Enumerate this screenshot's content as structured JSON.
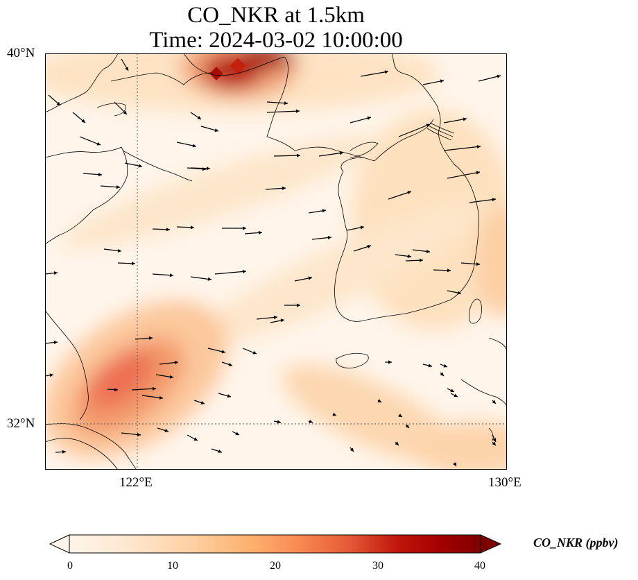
{
  "title": {
    "line1": "CO_NKR at 1.5km",
    "line2": "Time: 2024-03-02 10:00:00"
  },
  "axes": {
    "lat_ticks": [
      "40°N",
      "32°N"
    ],
    "lon_ticks": [
      "122°E",
      "130°E"
    ]
  },
  "map_extent": {
    "lon": [
      120,
      130
    ],
    "lat": [
      31,
      40
    ]
  },
  "gridlines": {
    "lon": [
      122
    ],
    "lat": [
      32
    ],
    "style": "dotted"
  },
  "colorbar": {
    "label": "CO_NKR (ppbv)",
    "ticks": [
      "0",
      "10",
      "20",
      "30",
      "40"
    ],
    "range": [
      0,
      40
    ],
    "extend": "both",
    "colormap": [
      "#fff5eb",
      "#fee6ce",
      "#fdd0a2",
      "#fdae6b",
      "#fd8d3c",
      "#f16913",
      "#d94801",
      "#a50000",
      "#7f0000"
    ]
  },
  "chart_data": {
    "type": "heatmap",
    "variable": "CO_NKR",
    "units": "ppbv",
    "hotspots": [
      {
        "lon": 121.5,
        "lat": 33.3,
        "value": 25
      },
      {
        "lon": 120.8,
        "lat": 32.6,
        "value": 22
      },
      {
        "lon": 123.7,
        "lat": 39.7,
        "value": 38
      },
      {
        "lon": 124.9,
        "lat": 39.9,
        "value": 36
      },
      {
        "lon": 129.7,
        "lat": 34.5,
        "value": 10
      }
    ],
    "wind_vectors": "mostly westerly to west-south-westerly over the Yellow Sea and Korea; north-westerly over the Shandong area; weak south-easterly flow south of Jeju"
  }
}
